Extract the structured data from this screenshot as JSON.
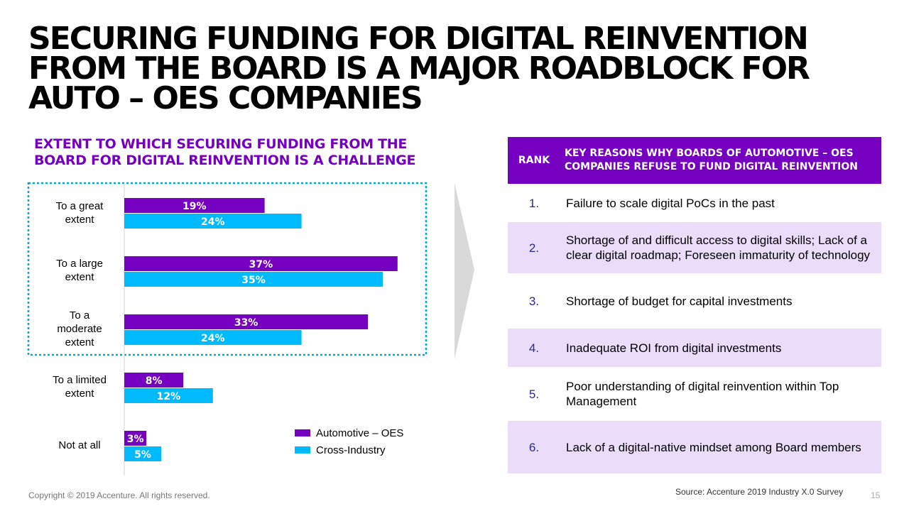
{
  "title": "SECURING FUNDING FOR DIGITAL REINVENTION FROM THE BOARD IS A MAJOR ROADBLOCK FOR AUTO – OES COMPANIES",
  "chart_data": {
    "type": "bar",
    "title": "EXTENT TO WHICH SECURING FUNDING FROM THE BOARD FOR DIGITAL REINVENTION IS A CHALLENGE",
    "orientation": "horizontal",
    "categories": [
      "To a great extent",
      "To a large extent",
      "To a moderate extent",
      "To a limited extent",
      "Not at all"
    ],
    "series": [
      {
        "name": "Automotive – OES",
        "values": [
          19,
          37,
          33,
          8,
          3
        ],
        "color": "#7500c0"
      },
      {
        "name": "Cross-Industry",
        "values": [
          24,
          35,
          24,
          12,
          5
        ],
        "color": "#00baff"
      }
    ],
    "value_suffix": "%",
    "xlim": [
      0,
      40
    ],
    "grid": false,
    "legend_position": "bottom-right",
    "highlight": {
      "categories": [
        "To a great extent",
        "To a large extent",
        "To a moderate extent"
      ],
      "style": "dotted-box",
      "color": "#00a8d6"
    }
  },
  "table": {
    "rank_header": "RANK",
    "reason_header": "KEY REASONS WHY BOARDS OF AUTOMOTIVE – OES COMPANIES REFUSE TO FUND DIGITAL REINVENTION",
    "rows": [
      {
        "rank": "1.",
        "reason": "Failure to scale digital PoCs in the past",
        "shaded": false
      },
      {
        "rank": "2.",
        "reason": "Shortage of and difficult access to digital skills; Lack of a clear digital roadmap; Foreseen immaturity of technology",
        "shaded": true
      },
      {
        "rank": "3.",
        "reason": "Shortage of budget for capital investments",
        "shaded": false
      },
      {
        "rank": "4.",
        "reason": "Inadequate ROI from digital investments",
        "shaded": true
      },
      {
        "rank": "5.",
        "reason": "Poor understanding of digital reinvention within Top Management",
        "shaded": false
      },
      {
        "rank": "6.",
        "reason": "Lack of a digital-native mindset among Board members",
        "shaded": true
      }
    ]
  },
  "footer": {
    "copyright": "Copyright © 2019 Accenture. All rights reserved.",
    "source": "Source: Accenture 2019 Industry X.0 Survey",
    "page_number": "15"
  },
  "colors": {
    "purple": "#7500c0",
    "cyan": "#00baff",
    "light_purple": "#ebdcfa"
  }
}
